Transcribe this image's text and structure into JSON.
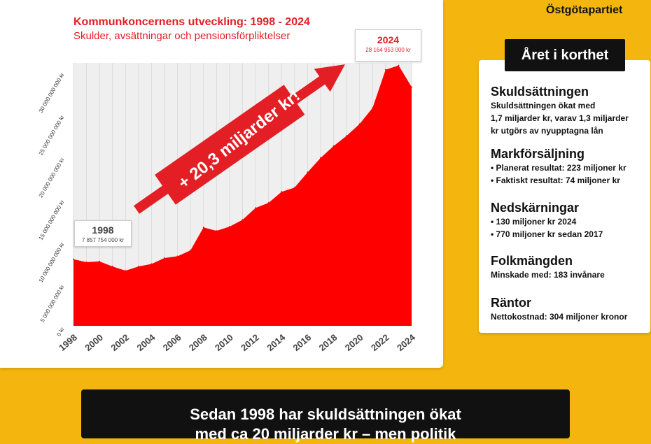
{
  "brand": "Östgötapartiet",
  "chart_data": {
    "type": "area",
    "title": "Kommunkoncernens utveckling: 1998 - 2024",
    "subtitle": "Skulder, avsättningar och pensionsförpliktelser",
    "x": [
      1998,
      1999,
      2000,
      2001,
      2002,
      2003,
      2004,
      2005,
      2006,
      2007,
      2008,
      2009,
      2010,
      2011,
      2012,
      2013,
      2014,
      2015,
      2016,
      2017,
      2018,
      2019,
      2020,
      2021,
      2022,
      2023,
      2024
    ],
    "values": [
      7857754000,
      7500000000,
      7600000000,
      7000000000,
      6500000000,
      7000000000,
      7300000000,
      8000000000,
      8200000000,
      8900000000,
      11600000000,
      11200000000,
      11700000000,
      12500000000,
      13900000000,
      14500000000,
      15800000000,
      16300000000,
      18100000000,
      19800000000,
      21200000000,
      22400000000,
      23800000000,
      25700000000,
      30200000000,
      30700000000,
      28164953000
    ],
    "ylim": [
      0,
      31000000000
    ],
    "y_ticks": [
      0,
      5000000000,
      10000000000,
      15000000000,
      20000000000,
      25000000000,
      30000000000
    ],
    "y_tick_labels": [
      "0 kr",
      "5 000 000 000 kr",
      "10 000 000 000 kr",
      "15 000 000 000 kr",
      "20 000 000 000 kr",
      "25 000 000 000 kr",
      "30 000 000 000 kr"
    ],
    "x_tick_labels": [
      "1998",
      "2000",
      "2002",
      "2004",
      "2006",
      "2008",
      "2010",
      "2012",
      "2014",
      "2016",
      "2018",
      "2020",
      "2022",
      "2024"
    ],
    "color": "#FF0000",
    "grid": true,
    "annotations": [
      {
        "year": "1998",
        "value_label": "7 857 754 000 kr"
      },
      {
        "year": "2024",
        "value_label": "28 164 953 000 kr"
      }
    ],
    "arrow_label": "+ 20,3 miljarder kr!"
  },
  "info_box": {
    "title": "Året i korthet",
    "sections": [
      {
        "heading": "Skuldsättningen",
        "lines": [
          "Skuldsättningen ökat med",
          "1,7 miljarder kr, varav 1,3 miljarder",
          "kr utgörs av nyupptagna lån"
        ]
      },
      {
        "heading": "Markförsäljning",
        "bullets": [
          "Planerat resultat: 223 miljoner kr",
          "Faktiskt resultat: 74 miljoner kr"
        ]
      },
      {
        "heading": "Nedskärningar",
        "bullets": [
          "130 miljoner kr 2024",
          "770 miljoner kr sedan 2017"
        ]
      },
      {
        "heading": "Folkmängden",
        "lines": [
          "Minskade med: 183 invånare"
        ]
      },
      {
        "heading": "Räntor",
        "lines": [
          "Nettokostnad: 304 miljoner kronor"
        ]
      }
    ]
  },
  "bottom_text": [
    "Sedan 1998 har skuldsättningen ökat",
    "med ca 20 miljarder kr – men politik"
  ]
}
